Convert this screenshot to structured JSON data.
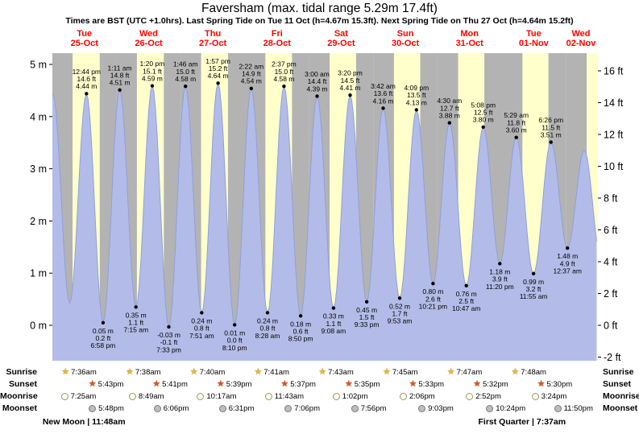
{
  "header": {
    "title": "Faversham (max. tidal range 5.29m 17.4ft)",
    "subtitle": "Times are BST (UTC +1.0hrs). Last Spring Tide on Tue 11 Oct (h=4.67m 15.3ft). Next Spring Tide on Thu 27 Oct (h=4.64m 15.2ft)"
  },
  "days": [
    {
      "name": "Tue",
      "date": "25-Oct"
    },
    {
      "name": "Wed",
      "date": "26-Oct"
    },
    {
      "name": "Thu",
      "date": "27-Oct"
    },
    {
      "name": "Fri",
      "date": "28-Oct"
    },
    {
      "name": "Sat",
      "date": "29-Oct"
    },
    {
      "name": "Sun",
      "date": "30-Oct"
    },
    {
      "name": "Mon",
      "date": "31-Oct"
    },
    {
      "name": "Tue",
      "date": "01-Nov"
    },
    {
      "name": "Wed",
      "date": "02-Nov"
    }
  ],
  "chart_data": {
    "type": "area",
    "title": "Tide height curve for Faversham, Tue 25-Oct to Wed 02-Nov",
    "x_span_days": 8.5,
    "ylim_m": [
      -0.68,
      5.22
    ],
    "grid": false,
    "y_axis_left": {
      "unit": "m",
      "ticks": [
        {
          "value": 5,
          "label": "5 m"
        },
        {
          "value": 4,
          "label": "4 m"
        },
        {
          "value": 3,
          "label": "3 m"
        },
        {
          "value": 2,
          "label": "2 m"
        },
        {
          "value": 1,
          "label": "1 m"
        },
        {
          "value": 0,
          "label": "0 m"
        }
      ]
    },
    "y_axis_right": {
      "unit": "ft",
      "ticks": [
        {
          "value": 16,
          "label": "16 ft"
        },
        {
          "value": 14,
          "label": "14 ft"
        },
        {
          "value": 12,
          "label": "12 ft"
        },
        {
          "value": 10,
          "label": "10 ft"
        },
        {
          "value": 8,
          "label": "8 ft"
        },
        {
          "value": 6,
          "label": "6 ft"
        },
        {
          "value": 4,
          "label": "4 ft"
        },
        {
          "value": 2,
          "label": "2 ft"
        },
        {
          "value": 0,
          "label": "0 ft"
        },
        {
          "value": -2,
          "label": "-2 ft"
        }
      ]
    },
    "tide_events": [
      {
        "day": 0,
        "time": "12:44 pm",
        "type": "high",
        "m": 4.44,
        "ft": "14.6"
      },
      {
        "day": 0,
        "time": "6:58 pm",
        "type": "low",
        "m": 0.05,
        "ft": "0.2"
      },
      {
        "day": 1,
        "time": "1:11 am",
        "type": "high",
        "m": 4.51,
        "ft": "14.8"
      },
      {
        "day": 1,
        "time": "7:15 am",
        "type": "low",
        "m": 0.35,
        "ft": "1.1"
      },
      {
        "day": 1,
        "time": "1:20 pm",
        "type": "high",
        "m": 4.59,
        "ft": "15.1"
      },
      {
        "day": 1,
        "time": "7:33 pm",
        "type": "low",
        "m": -0.03,
        "ft": "-0.1"
      },
      {
        "day": 2,
        "time": "1:46 am",
        "type": "high",
        "m": 4.58,
        "ft": "15.0"
      },
      {
        "day": 2,
        "time": "7:51 am",
        "type": "low",
        "m": 0.24,
        "ft": "0.8"
      },
      {
        "day": 2,
        "time": "1:57 pm",
        "type": "high",
        "m": 4.64,
        "ft": "15.2"
      },
      {
        "day": 2,
        "time": "8:10 pm",
        "type": "low",
        "m": 0.01,
        "ft": "0.0"
      },
      {
        "day": 3,
        "time": "2:22 am",
        "type": "high",
        "m": 4.54,
        "ft": "14.9"
      },
      {
        "day": 3,
        "time": "8:28 am",
        "type": "low",
        "m": 0.24,
        "ft": "0.8"
      },
      {
        "day": 3,
        "time": "2:37 pm",
        "type": "high",
        "m": 4.58,
        "ft": "15.0"
      },
      {
        "day": 3,
        "time": "8:50 pm",
        "type": "low",
        "m": 0.18,
        "ft": "0.6"
      },
      {
        "day": 4,
        "time": "3:00 am",
        "type": "high",
        "m": 4.39,
        "ft": "14.4"
      },
      {
        "day": 4,
        "time": "9:08 am",
        "type": "low",
        "m": 0.33,
        "ft": "1.1"
      },
      {
        "day": 4,
        "time": "3:20 pm",
        "type": "high",
        "m": 4.41,
        "ft": "14.5"
      },
      {
        "day": 4,
        "time": "9:33 pm",
        "type": "low",
        "m": 0.45,
        "ft": "1.5"
      },
      {
        "day": 5,
        "time": "3:42 am",
        "type": "high",
        "m": 4.16,
        "ft": "13.6"
      },
      {
        "day": 5,
        "time": "9:53 am",
        "type": "low",
        "m": 0.52,
        "ft": "1.7"
      },
      {
        "day": 5,
        "time": "4:09 pm",
        "type": "high",
        "m": 4.13,
        "ft": "13.5"
      },
      {
        "day": 5,
        "time": "10:21 pm",
        "type": "low",
        "m": 0.8,
        "ft": "2.6"
      },
      {
        "day": 6,
        "time": "4:30 am",
        "type": "high",
        "m": 3.88,
        "ft": "12.7"
      },
      {
        "day": 6,
        "time": "10:47 am",
        "type": "low",
        "m": 0.76,
        "ft": "2.5"
      },
      {
        "day": 6,
        "time": "5:08 pm",
        "type": "high",
        "m": 3.8,
        "ft": "12.5"
      },
      {
        "day": 6,
        "time": "11:20 pm",
        "type": "low",
        "m": 1.18,
        "ft": "3.9"
      },
      {
        "day": 7,
        "time": "5:29 am",
        "type": "high",
        "m": 3.6,
        "ft": "11.8"
      },
      {
        "day": 7,
        "time": "11:55 am",
        "type": "low",
        "m": 0.99,
        "ft": "3.2"
      },
      {
        "day": 7,
        "time": "6:26 pm",
        "type": "high",
        "m": 3.51,
        "ft": "11.5"
      },
      {
        "day": 8,
        "time": "12:37 am",
        "type": "low",
        "m": 1.48,
        "ft": "4.9"
      }
    ],
    "unlabeled_curve_anchors": [
      {
        "day": 0,
        "time": "12:10 am",
        "type": "high",
        "m": 4.42
      },
      {
        "day": 0,
        "time": "6:30 am",
        "type": "low",
        "m": 0.42
      },
      {
        "day": 8,
        "time": "6:55 am",
        "type": "high",
        "m": 3.35
      },
      {
        "day": 8,
        "time": "1:15 pm",
        "type": "low",
        "m": 1.25
      }
    ]
  },
  "sun_moon": {
    "row_labels": [
      "Sunrise",
      "Sunset",
      "Moonrise",
      "Moonset"
    ],
    "sunrise": [
      "7:36am",
      "7:38am",
      "7:40am",
      "7:41am",
      "7:43am",
      "7:45am",
      "7:47am",
      "7:48am"
    ],
    "sunset": [
      "5:43pm",
      "5:41pm",
      "5:39pm",
      "5:37pm",
      "5:35pm",
      "5:33pm",
      "5:32pm",
      "5:30pm"
    ],
    "moonrise": [
      "7:25am",
      "8:49am",
      "10:17am",
      "11:43am",
      "1:02pm",
      "2:06pm",
      "2:52pm",
      "3:24pm"
    ],
    "moonset": [
      "5:48pm",
      "6:06pm",
      "6:31pm",
      "7:06pm",
      "7:56pm",
      "9:03pm",
      "10:24pm",
      "11:50pm"
    ],
    "phases": [
      {
        "label": "New Moon | 11:48am",
        "day": 0,
        "time": "11:48am"
      },
      {
        "label": "First Quarter | 7:37am",
        "day": 7,
        "time": "7:37am"
      }
    ]
  },
  "colors": {
    "day_band": "#ffffcc",
    "night_band": "#b3b3b3",
    "tide_fill": "#b3bce8",
    "tide_stroke": "#8ea0dc",
    "date_red": "#ff0000",
    "text": "#000000"
  }
}
